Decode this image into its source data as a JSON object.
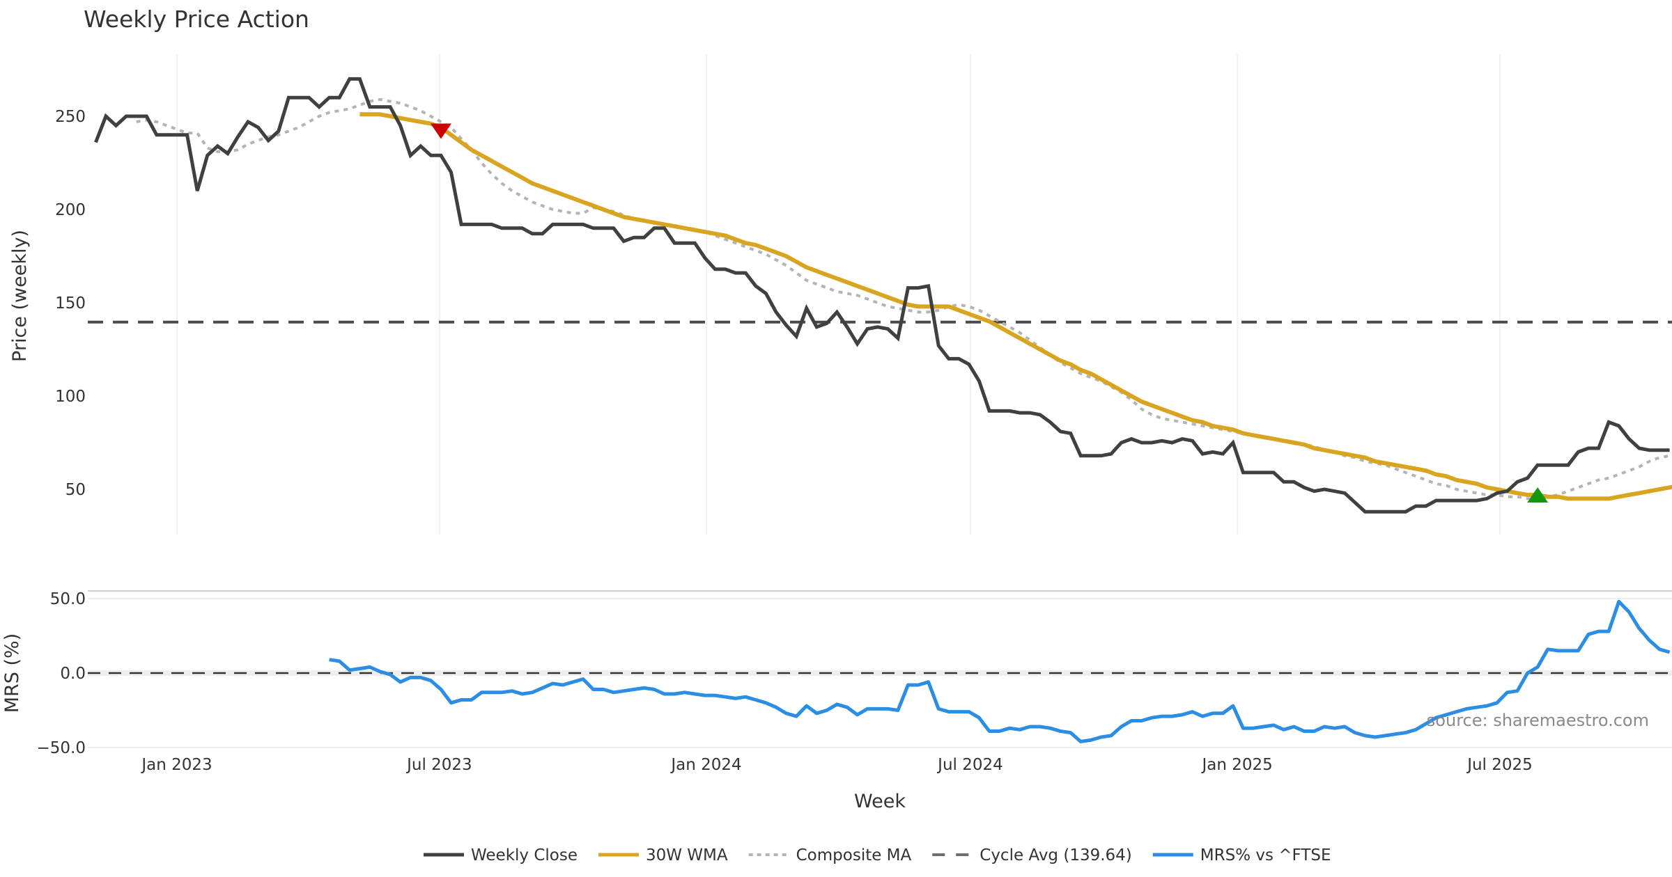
{
  "chart_data": {
    "type": "line",
    "title": "Weekly Price Action",
    "xlabel": "Week",
    "x_ticks": [
      "Jan 2023",
      "Jul 2023",
      "Jan 2024",
      "Jul 2024",
      "Jan 2025",
      "Jul 2025"
    ],
    "x_tick_dates": [
      "2023-01-01",
      "2023-07-01",
      "2024-01-01",
      "2024-07-01",
      "2025-01-01",
      "2025-07-01"
    ],
    "x_range": [
      "2022-11-06",
      "2025-10-20"
    ],
    "price_panel": {
      "ylabel": "Price (weekly)",
      "ylim": [
        22,
        282
      ],
      "y_ticks": [
        50,
        100,
        150,
        200,
        250
      ],
      "grid": "vertical-only",
      "series": [
        {
          "name": "Weekly Close",
          "color": "#404040",
          "style": "solid",
          "start_date": "2022-11-06",
          "values": [
            236,
            250,
            245,
            250,
            250,
            250,
            240,
            240,
            240,
            240,
            210,
            229,
            234,
            230,
            239,
            247,
            244,
            237,
            242,
            260,
            260,
            260,
            255,
            260,
            260,
            270,
            270,
            255,
            255,
            255,
            245,
            229,
            234,
            229,
            229,
            220,
            192,
            192,
            192,
            192,
            190,
            190,
            190,
            187,
            187,
            192,
            192,
            192,
            192,
            190,
            190,
            190,
            183,
            185,
            185,
            190,
            190,
            182,
            182,
            182,
            174,
            168,
            168,
            166,
            166,
            159,
            155,
            145,
            138,
            132,
            147,
            137,
            139,
            145,
            137,
            128,
            136,
            137,
            136,
            131,
            158,
            158,
            159,
            127,
            120,
            120,
            117,
            108,
            92,
            92,
            92,
            91,
            91,
            90,
            86,
            81,
            80,
            68,
            68,
            68,
            69,
            75,
            77,
            75,
            75,
            76,
            75,
            77,
            76,
            69,
            70,
            69,
            75,
            59,
            59,
            59,
            59,
            54,
            54,
            51,
            49,
            50,
            49,
            48,
            43,
            38,
            38,
            38,
            38,
            38,
            41,
            41,
            44,
            44,
            44,
            44,
            44,
            45,
            48,
            49,
            54,
            56,
            63,
            63,
            63,
            63,
            70,
            72,
            72,
            86,
            84,
            77,
            72,
            71,
            71,
            71
          ]
        },
        {
          "name": "30W WMA",
          "color": "#d9a520",
          "style": "solid",
          "start_date": "2023-05-07",
          "values": [
            251,
            251,
            251,
            250,
            249,
            248,
            247,
            246,
            244,
            240,
            236,
            232,
            229,
            226,
            223,
            220,
            217,
            214,
            212,
            210,
            208,
            206,
            204,
            202,
            200,
            198,
            196,
            195,
            194,
            193,
            192,
            191,
            190,
            189,
            188,
            187,
            186,
            184,
            182,
            181,
            179,
            177,
            175,
            172,
            169,
            167,
            165,
            163,
            161,
            159,
            157,
            155,
            153,
            151,
            149,
            148,
            148,
            148,
            148,
            146,
            144,
            142,
            140,
            137,
            134,
            131,
            128,
            125,
            122,
            119,
            117,
            114,
            112,
            109,
            106,
            103,
            100,
            97,
            95,
            93,
            91,
            89,
            87,
            86,
            84,
            83,
            82,
            80,
            79,
            78,
            77,
            76,
            75,
            74,
            72,
            71,
            70,
            69,
            68,
            67,
            65,
            64,
            63,
            62,
            61,
            60,
            58,
            57,
            55,
            54,
            53,
            51,
            50,
            49,
            48,
            47,
            47,
            46,
            46,
            45,
            45,
            45,
            45,
            45,
            46,
            47,
            48,
            49,
            50,
            51,
            52,
            54,
            56,
            58,
            60,
            61,
            62,
            63
          ]
        },
        {
          "name": "Composite MA",
          "color": "#b4b4b4",
          "style": "dotted",
          "start_date": "2022-12-04",
          "values": [
            247,
            248,
            247,
            245,
            243,
            241,
            241,
            233,
            231,
            231,
            232,
            235,
            237,
            239,
            240,
            242,
            244,
            247,
            250,
            252,
            253,
            254,
            256,
            258,
            259,
            258,
            257,
            255,
            253,
            250,
            247,
            244,
            238,
            232,
            225,
            219,
            214,
            210,
            207,
            204,
            202,
            200,
            199,
            198,
            198,
            201,
            200,
            199,
            197,
            195,
            194,
            193,
            192,
            191,
            190,
            189,
            188,
            186,
            184,
            182,
            180,
            178,
            176,
            173,
            170,
            166,
            162,
            160,
            158,
            156,
            155,
            154,
            152,
            150,
            148,
            147,
            146,
            145,
            145,
            146,
            148,
            149,
            148,
            146,
            143,
            140,
            137,
            134,
            130,
            126,
            122,
            118,
            115,
            112,
            110,
            108,
            105,
            102,
            98,
            93,
            90,
            88,
            87,
            86,
            85,
            84,
            83,
            82,
            81,
            80,
            79,
            78,
            77,
            76,
            75,
            74,
            73,
            71,
            70,
            68,
            67,
            65,
            64,
            63,
            61,
            59,
            57,
            55,
            53,
            52,
            50,
            49,
            48,
            47,
            47,
            46,
            46,
            45,
            45,
            46,
            47,
            49,
            51,
            53,
            55,
            56,
            58,
            60,
            62,
            65,
            67,
            68,
            68,
            68
          ]
        },
        {
          "name": "Cycle Avg (139.64)",
          "color": "#4a4a4a",
          "style": "dashed",
          "constant": 139.64
        }
      ],
      "markers": [
        {
          "type": "sell",
          "shape": "triangle-down",
          "color": "#cc0000",
          "date": "2023-07-02",
          "value": 242
        },
        {
          "type": "buy",
          "shape": "triangle-up",
          "color": "#119911",
          "date": "2025-07-27",
          "value": 47
        }
      ]
    },
    "mrs_panel": {
      "ylabel": "MRS (%)",
      "ylim": [
        -52,
        55
      ],
      "y_ticks": [
        "50.0",
        "0.0",
        "−50.0"
      ],
      "y_tick_values": [
        50,
        0,
        -50
      ],
      "zero_line": {
        "value": 0,
        "style": "dashed",
        "color": "#333333"
      },
      "series": [
        {
          "name": "MRS% vs ^FTSE",
          "color": "#2b8de3",
          "start_date": "2023-04-16",
          "values": [
            9,
            8,
            2,
            3,
            4,
            1,
            -1,
            -6,
            -3,
            -3,
            -5,
            -11,
            -20,
            -18,
            -18,
            -13,
            -13,
            -13,
            -12,
            -14,
            -13,
            -10,
            -7,
            -8,
            -6,
            -4,
            -11,
            -11,
            -13,
            -12,
            -11,
            -10,
            -11,
            -14,
            -14,
            -13,
            -14,
            -15,
            -15,
            -16,
            -17,
            -16,
            -18,
            -20,
            -23,
            -27,
            -29,
            -22,
            -27,
            -25,
            -21,
            -23,
            -28,
            -24,
            -24,
            -24,
            -25,
            -8,
            -8,
            -6,
            -24,
            -26,
            -26,
            -26,
            -30,
            -39,
            -39,
            -37,
            -38,
            -36,
            -36,
            -37,
            -39,
            -40,
            -46,
            -45,
            -43,
            -42,
            -36,
            -32,
            -32,
            -30,
            -29,
            -29,
            -28,
            -26,
            -29,
            -27,
            -27,
            -22,
            -37,
            -37,
            -36,
            -35,
            -38,
            -36,
            -39,
            -39,
            -36,
            -37,
            -36,
            -40,
            -42,
            -43,
            -42,
            -41,
            -40,
            -38,
            -34,
            -30,
            -28,
            -26,
            -24,
            -23,
            -22,
            -20,
            -13,
            -12,
            0,
            4,
            16,
            15,
            15,
            15,
            26,
            28,
            28,
            48,
            41,
            30,
            22,
            16,
            14
          ]
        }
      ]
    },
    "legend": {
      "placement": "bottom-center",
      "entries": [
        {
          "label": "Weekly Close",
          "color": "#404040",
          "style": "solid"
        },
        {
          "label": "30W WMA",
          "color": "#d9a520",
          "style": "solid"
        },
        {
          "label": "Composite MA",
          "color": "#b4b4b4",
          "style": "dotted"
        },
        {
          "label": "Cycle Avg (139.64)",
          "color": "#6e6e6e",
          "style": "dashed"
        },
        {
          "label": "MRS% vs ^FTSE",
          "color": "#2b8de3",
          "style": "solid"
        }
      ]
    },
    "watermark": "source: sharemaestro.com"
  }
}
